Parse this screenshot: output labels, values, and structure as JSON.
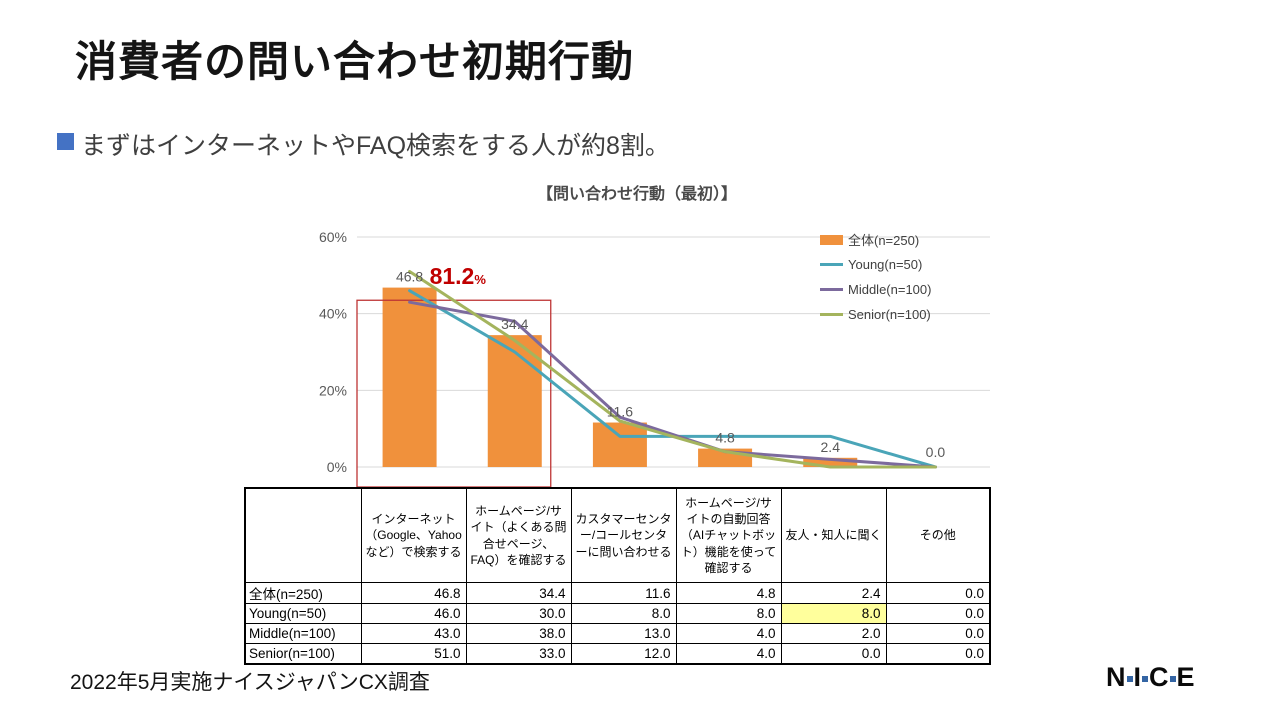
{
  "slide": {
    "title": "消費者の問い合わせ初期行動",
    "subtitle": "まずはインターネットやFAQ検索をする人が約8割。",
    "footer": "2022年5月実施ナイスジャパンCX調査"
  },
  "logo": {
    "letters": [
      "N",
      "I",
      "C",
      "E"
    ],
    "text_color": "#0a0a0a",
    "dot_color": "#3465a4"
  },
  "colors": {
    "accent_blue": "#4472c4",
    "bar_orange": "#f0913c",
    "young_teal": "#4aa5b8",
    "middle_purple": "#7c6a9d",
    "senior_olive": "#a4b45d",
    "annotation_red": "#c00000",
    "box_red": "#be3434",
    "grid_gray": "#d9d9d9",
    "axis_label_gray": "#595959",
    "highlight_yellow": "#ffff9c"
  },
  "chart_data": {
    "type": "bar+line",
    "title": "【問い合わせ行動（最初）】",
    "categories": [
      "インターネット（Google、Yahooなど）で検索する",
      "ホームページ/サイト（よくある問合せページ、FAQ）を確認する",
      "カスタマーセンター/コールセンターに問い合わせる",
      "ホームページ/サイトの自動回答（AIチャットボット）機能を使って確認する",
      "友人・知人に聞く",
      "その他"
    ],
    "y_axis": {
      "min": 0,
      "max": 60,
      "ticks": [
        0,
        20,
        40,
        60
      ],
      "tick_labels": [
        "0%",
        "20%",
        "40%",
        "60%"
      ]
    },
    "grid": true,
    "legend_position": "top-right",
    "series": [
      {
        "name": "全体(n=250)",
        "type": "bar",
        "color": "#f0913c",
        "values": [
          46.8,
          34.4,
          11.6,
          4.8,
          2.4,
          0.0
        ],
        "data_labels": true
      },
      {
        "name": "Young(n=50)",
        "type": "line",
        "color": "#4aa5b8",
        "values": [
          46.0,
          30.0,
          8.0,
          8.0,
          8.0,
          0.0
        ]
      },
      {
        "name": "Middle(n=100)",
        "type": "line",
        "color": "#7c6a9d",
        "values": [
          43.0,
          38.0,
          13.0,
          4.0,
          2.0,
          0.0
        ]
      },
      {
        "name": "Senior(n=100)",
        "type": "line",
        "color": "#a4b45d",
        "values": [
          51.0,
          33.0,
          12.0,
          4.0,
          0.0,
          0.0
        ]
      }
    ],
    "annotation": {
      "text": "81.2",
      "suffix": "%",
      "color": "#c00000"
    },
    "highlight_box": {
      "from_category": 0,
      "to_category": 1,
      "top_value": 43.5,
      "color": "#be3434"
    }
  },
  "table": {
    "corner": "",
    "columns": [
      "インターネット（Google、Yahooなど）で検索する",
      "ホームページ/サイト（よくある問合せページ、FAQ）を確認する",
      "カスタマーセンター/コールセンターに問い合わせる",
      "ホームページ/サイトの自動回答（AIチャットボット）機能を使って確認する",
      "友人・知人に聞く",
      "その他"
    ],
    "rows": [
      {
        "label": "全体(n=250)",
        "values": [
          46.8,
          34.4,
          11.6,
          4.8,
          2.4,
          0.0
        ]
      },
      {
        "label": "Young(n=50)",
        "values": [
          46.0,
          30.0,
          8.0,
          8.0,
          8.0,
          0.0
        ],
        "highlight_col": 4
      },
      {
        "label": "Middle(n=100)",
        "values": [
          43.0,
          38.0,
          13.0,
          4.0,
          2.0,
          0.0
        ]
      },
      {
        "label": "Senior(n=100)",
        "values": [
          51.0,
          33.0,
          12.0,
          4.0,
          0.0,
          0.0
        ]
      }
    ],
    "highlight_color": "#ffff9c"
  }
}
